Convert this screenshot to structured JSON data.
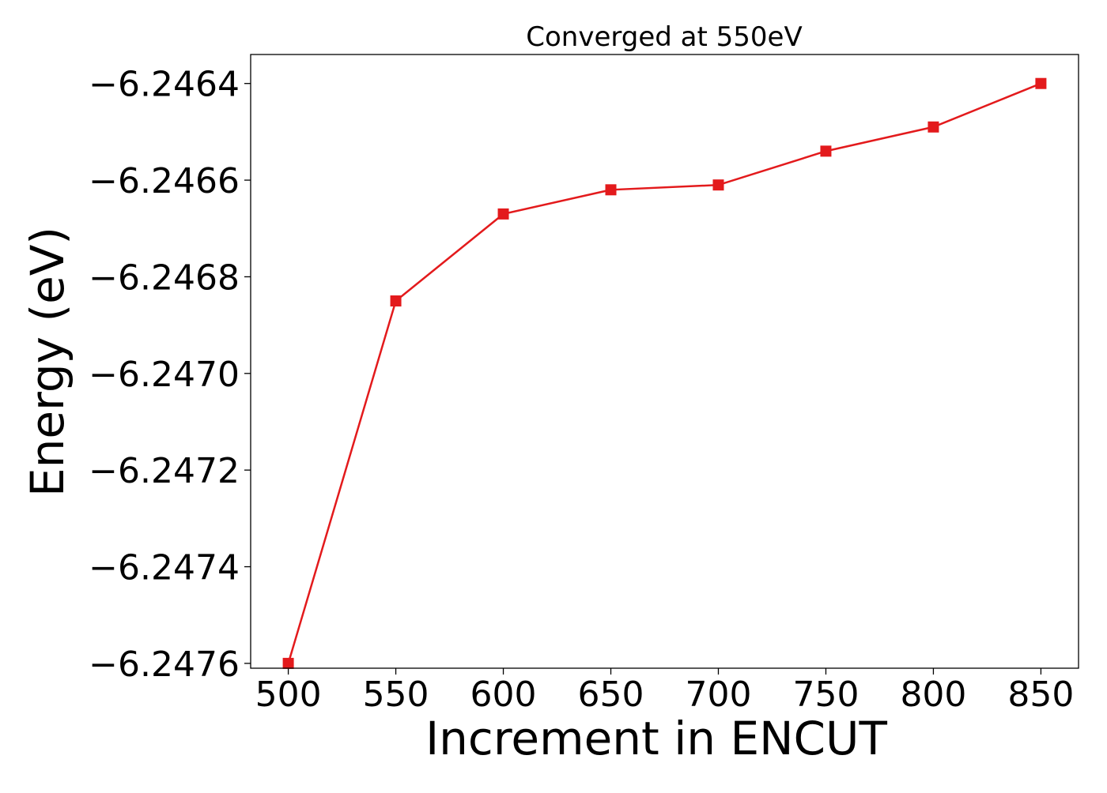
{
  "chart_data": {
    "type": "line",
    "title": "Converged at 550eV",
    "xlabel": "Increment in ENCUT",
    "ylabel": "Energy (eV)",
    "x": [
      500,
      550,
      600,
      650,
      700,
      750,
      800,
      850
    ],
    "series": [
      {
        "values": [
          -6.2476,
          -6.24685,
          -6.24667,
          -6.24662,
          -6.24661,
          -6.24654,
          -6.24649,
          -6.2464
        ],
        "color": "#e31a1c",
        "marker": "square"
      }
    ],
    "xticks": [
      500,
      550,
      600,
      650,
      700,
      750,
      800,
      850
    ],
    "xtick_labels": [
      "500",
      "550",
      "600",
      "650",
      "700",
      "750",
      "800",
      "850"
    ],
    "yticks": [
      -6.2464,
      -6.2466,
      -6.2468,
      -6.247,
      -6.2472,
      -6.2474,
      -6.2476
    ],
    "ytick_labels": [
      "−6.2464",
      "−6.2466",
      "−6.2468",
      "−6.2470",
      "−6.2472",
      "−6.2474",
      "−6.2476"
    ],
    "xlim": [
      482.5,
      867.5
    ],
    "ylim": [
      -6.24761,
      -6.24634
    ],
    "grid": false,
    "legend": false
  }
}
